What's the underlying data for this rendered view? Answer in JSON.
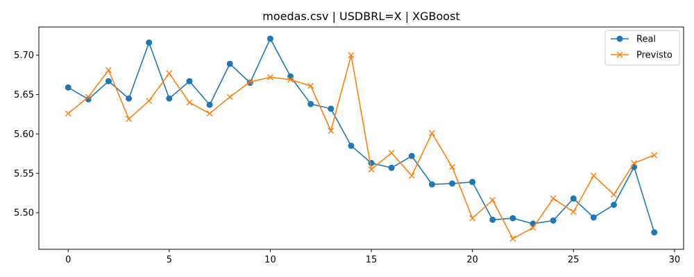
{
  "chart_data": {
    "type": "line",
    "title": "moedas.csv | USDBRL=X | XGBoost",
    "xlabel": "",
    "ylabel": "",
    "xlim": [
      -1.45,
      30.45
    ],
    "ylim": [
      5.4535,
      5.7358
    ],
    "x_ticks": [
      0,
      5,
      10,
      15,
      20,
      25,
      30
    ],
    "y_ticks": [
      5.5,
      5.55,
      5.6,
      5.65,
      5.7
    ],
    "x_tick_labels": [
      "0",
      "5",
      "10",
      "15",
      "20",
      "25",
      "30"
    ],
    "y_tick_labels": [
      "5.50",
      "5.55",
      "5.60",
      "5.65",
      "5.70"
    ],
    "grid": false,
    "legend_position": "top-right",
    "x": [
      0,
      1,
      2,
      3,
      4,
      5,
      6,
      7,
      8,
      9,
      10,
      11,
      12,
      13,
      14,
      15,
      16,
      17,
      18,
      19,
      20,
      21,
      22,
      23,
      24,
      25,
      26,
      27,
      28,
      29
    ],
    "series": [
      {
        "name": "Real",
        "color": "#1f77b4",
        "marker": "circle",
        "values": [
          5.659,
          5.644,
          5.667,
          5.645,
          5.716,
          5.645,
          5.667,
          5.637,
          5.689,
          5.665,
          5.721,
          5.673,
          5.638,
          5.632,
          5.585,
          5.563,
          5.557,
          5.572,
          5.536,
          5.537,
          5.539,
          5.491,
          5.493,
          5.486,
          5.49,
          5.518,
          5.494,
          5.51,
          5.558,
          5.475
        ]
      },
      {
        "name": "Previsto",
        "color": "#ff7f0e",
        "marker": "x",
        "values": [
          5.626,
          5.647,
          5.681,
          5.619,
          5.642,
          5.677,
          5.64,
          5.626,
          5.647,
          5.666,
          5.672,
          5.669,
          5.661,
          5.604,
          5.7,
          5.555,
          5.576,
          5.547,
          5.601,
          5.558,
          5.493,
          5.516,
          5.467,
          5.481,
          5.518,
          5.501,
          5.547,
          5.523,
          5.563,
          5.573
        ]
      }
    ]
  }
}
